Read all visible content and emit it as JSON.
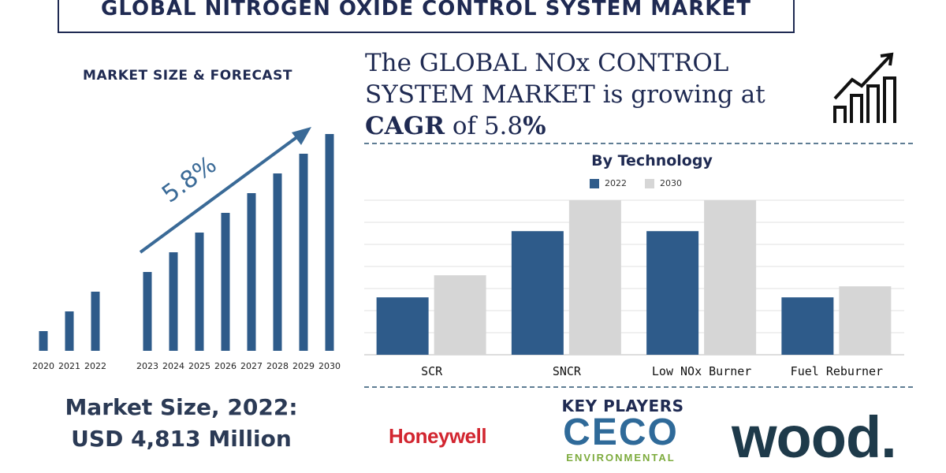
{
  "title": "GLOBAL NITROGEN OXIDE CONTROL SYSTEM MARKET",
  "left_panel": {
    "heading": "MARKET SIZE & FORECAST",
    "growth_label": "5.8%",
    "market_size_line1": "Market Size, 2022:",
    "market_size_line2": "USD 4,813  Million"
  },
  "headline": {
    "part1": "The GLOBAL NOx CONTROL SYSTEM MARKET is growing at",
    "cagr_word": "CAGR",
    "of": " of 5.8",
    "pct": "%"
  },
  "key_players": {
    "heading": "KEY PLAYERS",
    "players": [
      "Honeywell",
      "CECO",
      "ENVIRONMENTAL",
      "wood."
    ]
  },
  "icons": {
    "growth": "bar-chart-growth-icon"
  },
  "colors": {
    "bar_dark": "#2e5b8a",
    "bar_light": "#d6d6d6",
    "navy": "#1f2a52"
  },
  "chart_data": [
    {
      "type": "bar",
      "title": "MARKET SIZE & FORECAST",
      "categories": [
        "2020",
        "2021",
        "2022",
        "2023",
        "2024",
        "2025",
        "2026",
        "2027",
        "2028",
        "2029",
        "2030"
      ],
      "values": [
        1.0,
        2.0,
        3.0,
        4.0,
        5.0,
        6.0,
        7.0,
        8.0,
        9.0,
        10.0,
        11.0
      ],
      "ylim": [
        0,
        11.2
      ],
      "annotation": "5.8%",
      "grid": false
    },
    {
      "type": "bar",
      "title": "By Technology",
      "categories": [
        "SCR",
        "SNCR",
        "Low NOx Burner",
        "Fuel Reburner"
      ],
      "series": [
        {
          "name": "2022",
          "values": [
            2.6,
            5.6,
            5.6,
            2.6
          ]
        },
        {
          "name": "2030",
          "values": [
            3.6,
            7.0,
            7.0,
            3.1
          ]
        }
      ],
      "ylim": [
        0,
        7.0
      ],
      "grid": true,
      "legend": "top"
    }
  ]
}
